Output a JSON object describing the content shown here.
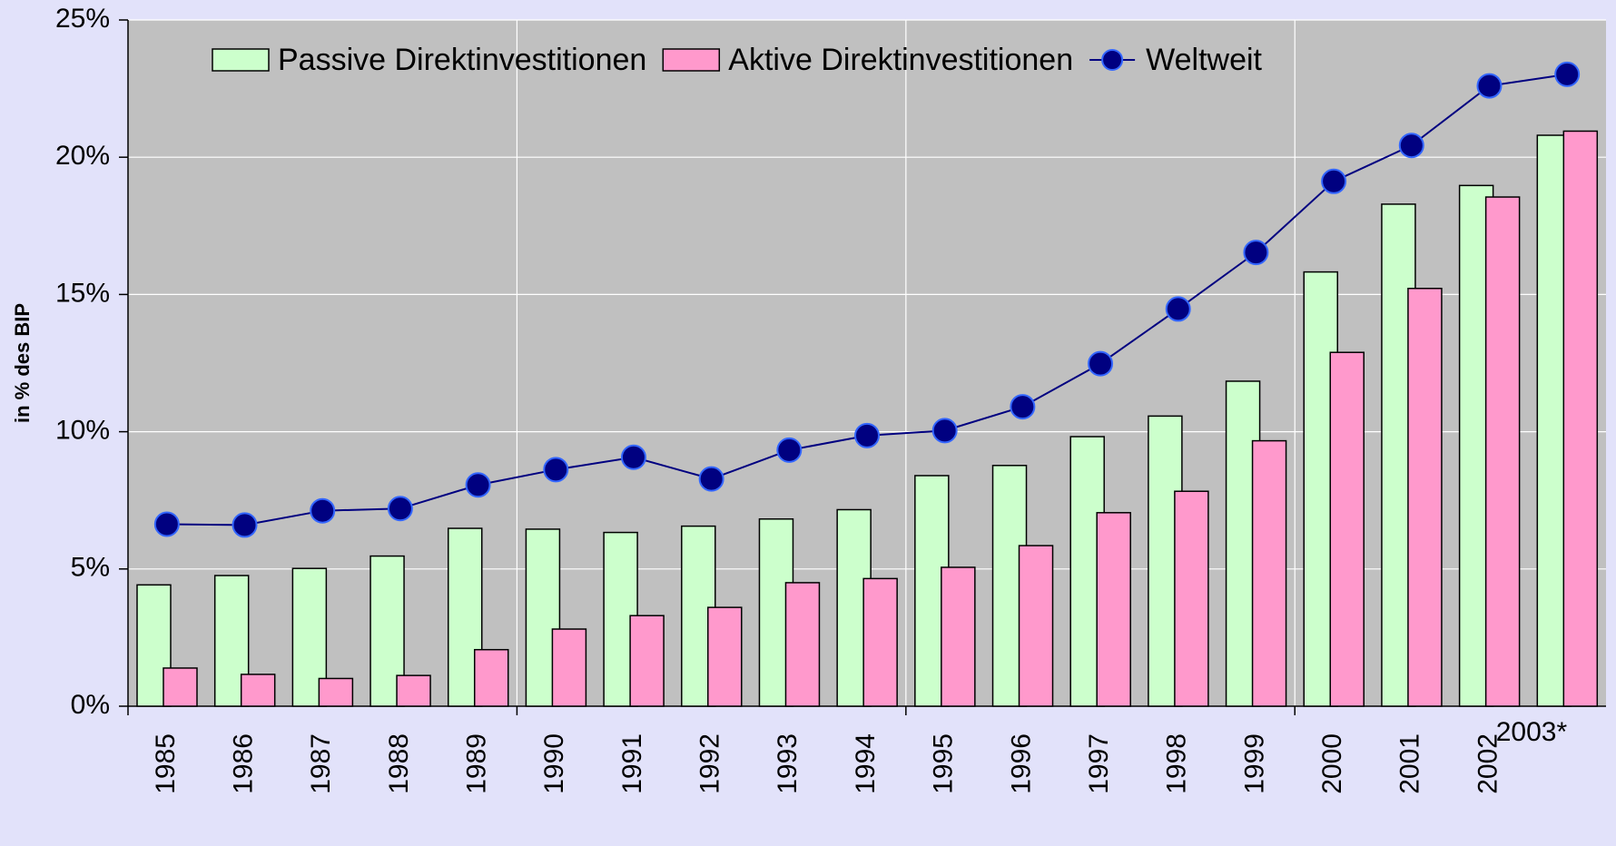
{
  "chart_data": {
    "type": "bar",
    "y_label": "in % des BIP",
    "categories": [
      "1985",
      "1986",
      "1987",
      "1988",
      "1989",
      "1990",
      "1991",
      "1992",
      "1993",
      "1994",
      "1995",
      "1996",
      "1997",
      "1998",
      "1999",
      "2000",
      "2001",
      "2002",
      "2003*"
    ],
    "series": [
      {
        "name": "Passive Direktinvestitionen",
        "color": "#ccffcc",
        "values": [
          4.42,
          4.76,
          5.02,
          5.47,
          6.48,
          6.45,
          6.33,
          6.56,
          6.82,
          7.16,
          8.4,
          8.77,
          9.82,
          10.57,
          11.84,
          15.82,
          18.29,
          18.97,
          20.8
        ]
      },
      {
        "name": "Aktive Direktinvestitionen",
        "color": "#ff99cc",
        "values": [
          1.39,
          1.16,
          1.01,
          1.12,
          2.06,
          2.81,
          3.3,
          3.6,
          4.5,
          4.65,
          5.06,
          5.85,
          7.05,
          7.83,
          9.67,
          12.89,
          15.22,
          18.55,
          20.95
        ]
      },
      {
        "name": "Weltweit",
        "type": "line",
        "color": "#000080",
        "values": [
          6.63,
          6.6,
          7.12,
          7.2,
          8.06,
          8.62,
          9.07,
          8.28,
          9.33,
          9.86,
          10.04,
          10.91,
          12.48,
          14.47,
          16.53,
          19.12,
          20.43,
          22.6,
          23.02
        ]
      }
    ],
    "ylim": [
      0,
      25
    ],
    "yticks": [
      {
        "value": 0,
        "label": "0%"
      },
      {
        "value": 5,
        "label": "5%"
      },
      {
        "value": 10,
        "label": "10%"
      },
      {
        "value": 15,
        "label": "15%"
      },
      {
        "value": 20,
        "label": "20%"
      },
      {
        "value": 25,
        "label": "25%"
      }
    ],
    "grid": true,
    "legend": "top"
  }
}
